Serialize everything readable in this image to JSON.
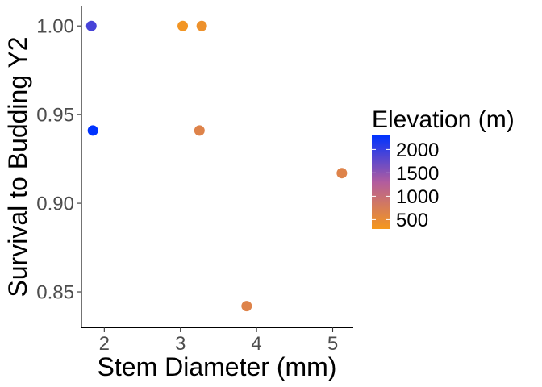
{
  "chart_data": {
    "type": "scatter",
    "xlabel": "Stem Diameter (mm)",
    "ylabel": "Survival to Budding Y2",
    "xlim": [
      1.7,
      5.27
    ],
    "ylim": [
      0.83,
      1.011
    ],
    "x_ticks": [
      {
        "value": 2,
        "label": "2"
      },
      {
        "value": 3,
        "label": "3"
      },
      {
        "value": 4,
        "label": "4"
      },
      {
        "value": 5,
        "label": "5"
      }
    ],
    "y_ticks": [
      {
        "value": 0.85,
        "label": "0.85"
      },
      {
        "value": 0.9,
        "label": "0.90"
      },
      {
        "value": 0.95,
        "label": "0.95"
      },
      {
        "value": 1.0,
        "label": "1.00"
      }
    ],
    "grid": false,
    "color_scale": {
      "title": "Elevation (m)",
      "low_color": "#f5981c",
      "high_color": "#0033ff",
      "range": [
        300,
        2300
      ],
      "ticks": [
        {
          "value": 500,
          "label": "500"
        },
        {
          "value": 1000,
          "label": "1000"
        },
        {
          "value": 1500,
          "label": "1500"
        },
        {
          "value": 2000,
          "label": "2000"
        }
      ],
      "legend_position": "right"
    },
    "points": [
      {
        "x": 1.83,
        "y": 1.0,
        "elevation": 1900
      },
      {
        "x": 1.85,
        "y": 0.941,
        "elevation": 2300
      },
      {
        "x": 3.03,
        "y": 1.0,
        "elevation": 350
      },
      {
        "x": 3.28,
        "y": 1.0,
        "elevation": 420
      },
      {
        "x": 3.25,
        "y": 0.941,
        "elevation": 650
      },
      {
        "x": 3.87,
        "y": 0.842,
        "elevation": 650
      },
      {
        "x": 5.12,
        "y": 0.917,
        "elevation": 650
      }
    ]
  }
}
